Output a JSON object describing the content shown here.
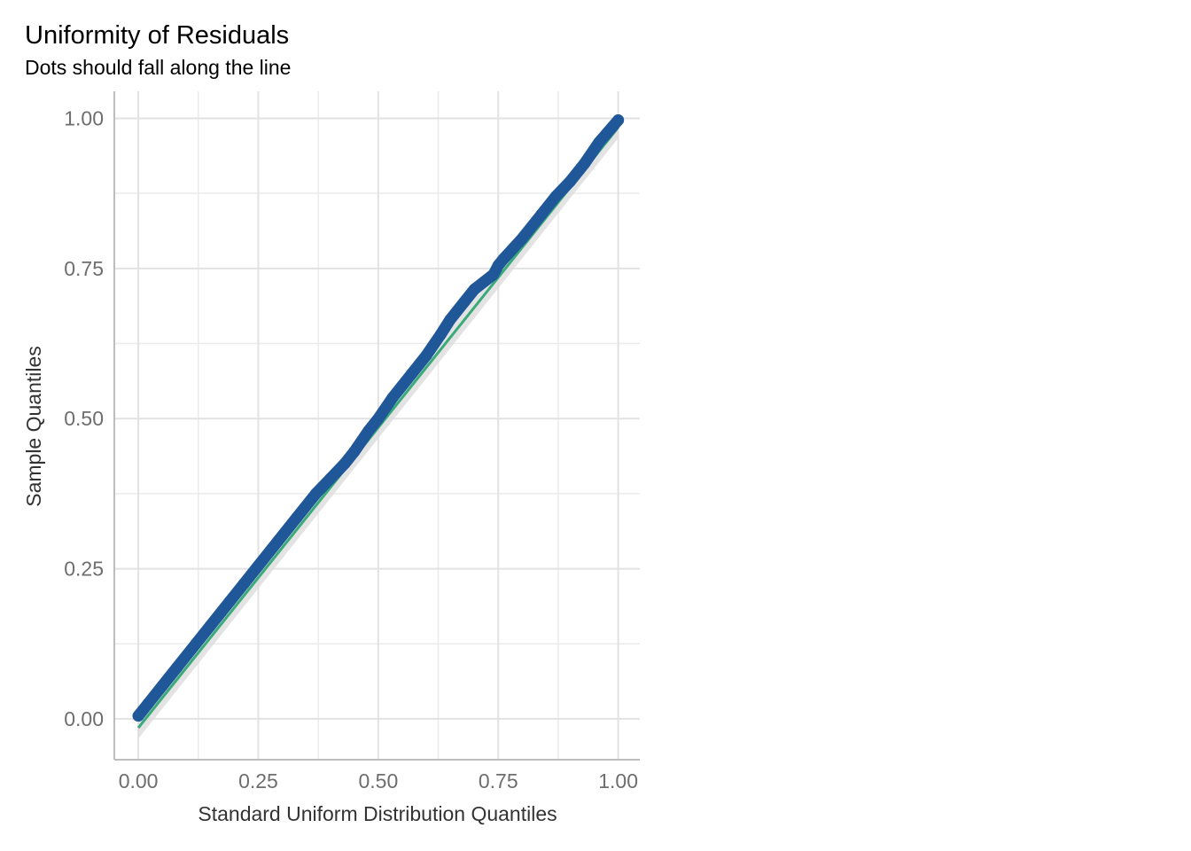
{
  "chart_data": {
    "type": "scatter",
    "title": "Uniformity of Residuals",
    "subtitle": "Dots should fall along the line",
    "xlabel": "Standard Uniform Distribution Quantiles",
    "ylabel": "Sample Quantiles",
    "xlim": [
      -0.05,
      1.045
    ],
    "ylim": [
      -0.068,
      1.045
    ],
    "x_ticks": [
      0.0,
      0.25,
      0.5,
      0.75,
      1.0
    ],
    "x_tick_labels": [
      "0.00",
      "0.25",
      "0.50",
      "0.75",
      "1.00"
    ],
    "y_ticks": [
      0.0,
      0.25,
      0.5,
      0.75,
      1.0
    ],
    "y_tick_labels": [
      "0.00",
      "0.25",
      "0.50",
      "0.75",
      "1.00"
    ],
    "grid": true,
    "reference_line": {
      "x": [
        0.0,
        1.0
      ],
      "y": [
        -0.015,
        0.985
      ],
      "color": "#3aaa7a"
    },
    "confidence_band_color": "#dcdcdc",
    "series": [
      {
        "color": "#1f5799",
        "x": [
          0.0,
          0.02,
          0.05,
          0.08,
          0.12,
          0.15,
          0.19,
          0.22,
          0.25,
          0.29,
          0.33,
          0.37,
          0.4,
          0.43,
          0.45,
          0.48,
          0.5,
          0.53,
          0.57,
          0.6,
          0.63,
          0.65,
          0.68,
          0.7,
          0.74,
          0.75,
          0.76,
          0.8,
          0.84,
          0.87,
          0.9,
          0.93,
          0.96,
          1.0
        ],
        "y": [
          0.005,
          0.025,
          0.055,
          0.085,
          0.125,
          0.155,
          0.195,
          0.225,
          0.255,
          0.295,
          0.335,
          0.375,
          0.4,
          0.425,
          0.445,
          0.48,
          0.5,
          0.535,
          0.575,
          0.605,
          0.64,
          0.665,
          0.695,
          0.715,
          0.74,
          0.755,
          0.765,
          0.8,
          0.84,
          0.87,
          0.895,
          0.925,
          0.96,
          0.997
        ]
      }
    ]
  }
}
